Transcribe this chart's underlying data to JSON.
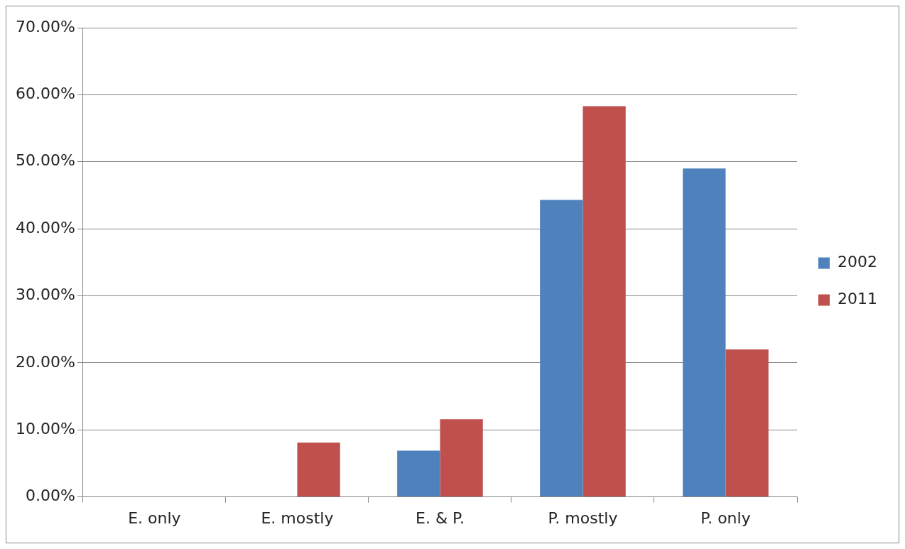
{
  "chart_data": {
    "type": "bar",
    "categories": [
      "E. only",
      "E. mostly",
      "E. & P.",
      "P. mostly",
      "P. only"
    ],
    "series": [
      {
        "name": "2002",
        "color": "#4f81bd",
        "values": [
          0,
          0,
          6.9,
          44.3,
          49.0
        ]
      },
      {
        "name": "2011",
        "color": "#c0504d",
        "values": [
          0,
          8.1,
          11.6,
          58.3,
          22.0
        ]
      }
    ],
    "ylim": [
      0,
      70
    ],
    "yticks": [
      {
        "value": 0,
        "label": "0.00%"
      },
      {
        "value": 10,
        "label": "10.00%"
      },
      {
        "value": 20,
        "label": "20.00%"
      },
      {
        "value": 30,
        "label": "30.00%"
      },
      {
        "value": 40,
        "label": "40.00%"
      },
      {
        "value": 50,
        "label": "50.00%"
      },
      {
        "value": 60,
        "label": "60.00%"
      },
      {
        "value": 70,
        "label": "70.00%"
      }
    ],
    "grid": "y",
    "legend": "right"
  }
}
